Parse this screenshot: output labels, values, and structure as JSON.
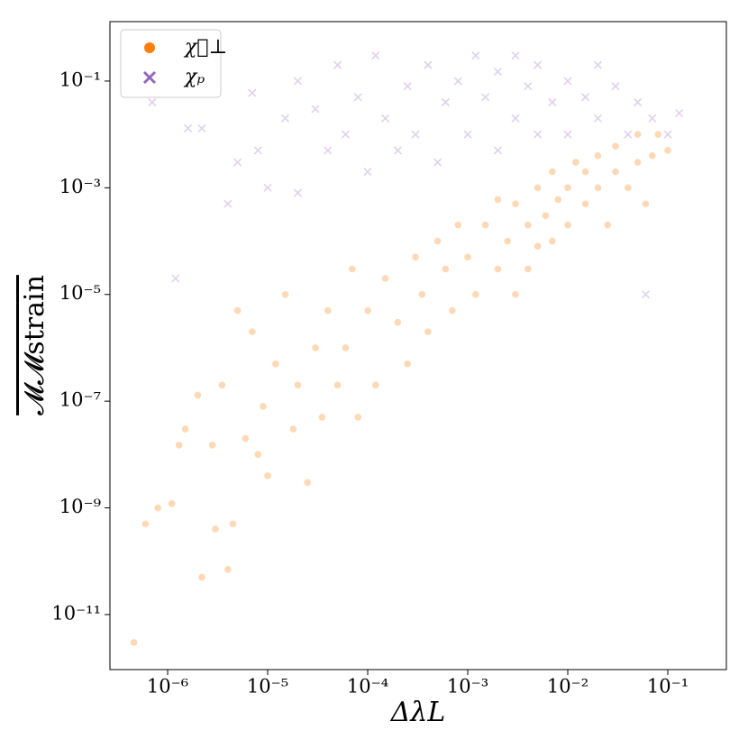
{
  "chart_data": {
    "type": "scatter",
    "xlabel": "ΔλL",
    "ylabel": "𝓜𝓜strain",
    "log_x": true,
    "log_y": true,
    "legend": "upper left",
    "xlim": [
      2.65e-07,
      0.385
    ],
    "ylim": [
      9.3e-13,
      1.3
    ],
    "xticks": [
      {
        "value": 1e-06,
        "label": "10⁻⁶"
      },
      {
        "value": 1e-05,
        "label": "10⁻⁵"
      },
      {
        "value": 0.0001,
        "label": "10⁻⁴"
      },
      {
        "value": 0.001,
        "label": "10⁻³"
      },
      {
        "value": 0.01,
        "label": "10⁻²"
      },
      {
        "value": 0.1,
        "label": "10⁻¹"
      }
    ],
    "yticks": [
      {
        "value": 1e-11,
        "label": "10⁻¹¹"
      },
      {
        "value": 1e-09,
        "label": "10⁻⁹"
      },
      {
        "value": 1e-07,
        "label": "10⁻⁷"
      },
      {
        "value": 1e-05,
        "label": "10⁻⁵"
      },
      {
        "value": 0.001,
        "label": "10⁻³"
      },
      {
        "value": 0.1,
        "label": "10⁻¹"
      }
    ],
    "series": [
      {
        "name": "χ⃗⊥",
        "color": "#ff7f0e",
        "marker": "o",
        "x": [
          4.6e-07,
          6e-07,
          8e-07,
          1.1e-06,
          1.3e-06,
          1.5e-06,
          2.2e-06,
          2e-06,
          2.8e-06,
          3e-06,
          3.5e-06,
          4e-06,
          4.5e-06,
          5e-06,
          6e-06,
          7e-06,
          8e-06,
          9e-06,
          1e-05,
          1.2e-05,
          1.5e-05,
          1.8e-05,
          2e-05,
          2.5e-05,
          3e-05,
          3.5e-05,
          4e-05,
          5e-05,
          6e-05,
          7e-05,
          8e-05,
          0.0001,
          0.00012,
          0.00015,
          0.0002,
          0.00025,
          0.0003,
          0.00035,
          0.0004,
          0.0005,
          0.0006,
          0.0007,
          0.0008,
          0.001,
          0.0012,
          0.0015,
          0.002,
          0.002,
          0.0025,
          0.003,
          0.003,
          0.004,
          0.004,
          0.005,
          0.005,
          0.006,
          0.007,
          0.007,
          0.008,
          0.01,
          0.01,
          0.012,
          0.015,
          0.015,
          0.02,
          0.02,
          0.025,
          0.03,
          0.03,
          0.04,
          0.05,
          0.05,
          0.06,
          0.07,
          0.08,
          0.1
        ],
        "y": [
          3e-12,
          5e-10,
          1e-09,
          1.2e-09,
          1.5e-08,
          3e-08,
          5e-11,
          1.3e-07,
          1.5e-08,
          4e-10,
          2e-07,
          7e-11,
          5e-10,
          5e-06,
          2e-08,
          2e-06,
          1e-08,
          8e-08,
          4e-09,
          5e-07,
          1e-05,
          3e-08,
          2e-07,
          3e-09,
          1e-06,
          5e-08,
          5e-06,
          2e-07,
          1e-06,
          3e-05,
          5e-08,
          5e-06,
          2e-07,
          2e-05,
          3e-06,
          5e-07,
          5e-05,
          1e-05,
          2e-06,
          0.0001,
          3e-05,
          5e-06,
          0.0002,
          5e-05,
          1e-05,
          0.0002,
          3e-05,
          0.0006,
          0.0001,
          1e-05,
          0.0005,
          0.0002,
          3e-05,
          0.001,
          8e-05,
          0.0003,
          0.002,
          0.0001,
          0.0006,
          0.001,
          0.0002,
          0.003,
          0.0005,
          0.002,
          0.004,
          0.001,
          0.0002,
          0.002,
          0.006,
          0.001,
          0.003,
          0.01,
          0.0005,
          0.004,
          0.01,
          0.005
        ]
      },
      {
        "name": "χₚ",
        "color": "#9467bd",
        "marker": "x",
        "x": [
          7e-07,
          1.2e-06,
          1.6e-06,
          2.2e-06,
          4e-06,
          5e-06,
          7e-06,
          8e-06,
          1e-05,
          1.5e-05,
          2e-05,
          2e-05,
          3e-05,
          4e-05,
          5e-05,
          6e-05,
          8e-05,
          0.0001,
          0.00012,
          0.00015,
          0.0002,
          0.00025,
          0.0003,
          0.0004,
          0.0005,
          0.0006,
          0.0008,
          0.001,
          0.0012,
          0.0015,
          0.002,
          0.002,
          0.003,
          0.003,
          0.004,
          0.005,
          0.005,
          0.007,
          0.01,
          0.01,
          0.015,
          0.02,
          0.02,
          0.03,
          0.04,
          0.05,
          0.06,
          0.07,
          0.1,
          0.13
        ],
        "y": [
          0.04,
          2e-05,
          0.013,
          0.013,
          0.0005,
          0.003,
          0.06,
          0.005,
          0.001,
          0.02,
          0.0008,
          0.1,
          0.03,
          0.005,
          0.2,
          0.01,
          0.05,
          0.002,
          0.3,
          0.02,
          0.005,
          0.08,
          0.01,
          0.2,
          0.003,
          0.04,
          0.1,
          0.01,
          0.3,
          0.05,
          0.005,
          0.15,
          0.02,
          0.3,
          0.08,
          0.01,
          0.2,
          0.04,
          0.1,
          0.01,
          0.05,
          0.2,
          0.02,
          0.08,
          0.01,
          0.04,
          1e-05,
          0.02,
          0.01,
          0.025
        ]
      }
    ]
  }
}
